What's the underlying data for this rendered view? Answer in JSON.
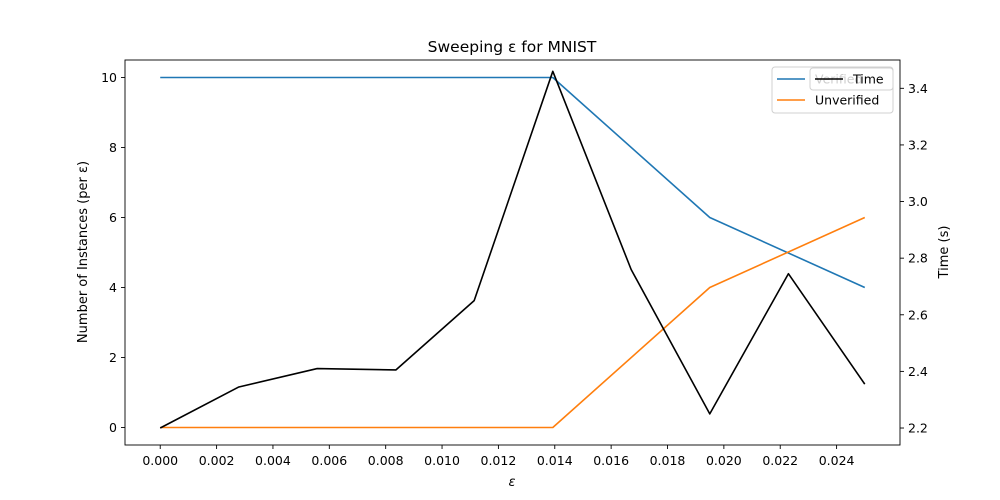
{
  "chart_data": {
    "type": "line",
    "title": "Sweeping ε for MNIST",
    "xlabel": "ε",
    "ylabel": "Number of Instances (per ε)",
    "y2label": "Time (s)",
    "xlim": [
      -0.00125,
      0.02625
    ],
    "ylim": [
      -0.5,
      10.5
    ],
    "y2lim": [
      2.14,
      3.5
    ],
    "x_ticks": [
      "0.000",
      "0.002",
      "0.004",
      "0.006",
      "0.008",
      "0.010",
      "0.012",
      "0.014",
      "0.016",
      "0.018",
      "0.020",
      "0.022",
      "0.024"
    ],
    "y_ticks": [
      "0",
      "2",
      "4",
      "6",
      "8",
      "10"
    ],
    "y2_ticks": [
      "2.2",
      "2.4",
      "2.6",
      "2.8",
      "3.0",
      "3.2",
      "3.4"
    ],
    "grid": false,
    "legend_position": "top-right",
    "series": [
      {
        "name": "Verified",
        "axis": "left",
        "color": "#1f77b4",
        "x": [
          0.0,
          0.01393,
          0.0195,
          0.025
        ],
        "y": [
          10,
          10,
          6,
          4
        ]
      },
      {
        "name": "Unverified",
        "axis": "left",
        "color": "#ff7f0e",
        "x": [
          0.0,
          0.01393,
          0.0195,
          0.025
        ],
        "y": [
          0,
          0,
          4,
          6
        ]
      },
      {
        "name": "Time",
        "axis": "right",
        "color": "#000000",
        "x": [
          0.0,
          0.00279,
          0.00557,
          0.00836,
          0.01114,
          0.01393,
          0.01671,
          0.0195,
          0.02229,
          0.025
        ],
        "y": [
          2.2,
          2.345,
          2.41,
          2.405,
          2.65,
          3.46,
          2.76,
          2.25,
          2.745,
          2.355
        ]
      }
    ]
  }
}
